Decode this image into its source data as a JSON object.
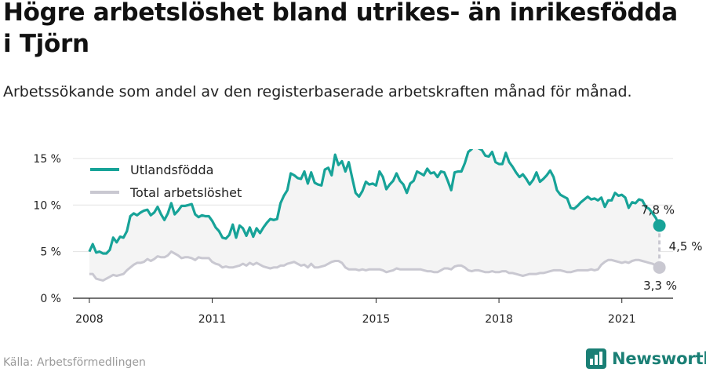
{
  "title": "Högre arbetslöshet bland utrikes- än inrikesfödda i Tjörn",
  "subtitle": "Arbetssökande som andel av den registerbaserade arbetskraften månad för månad.",
  "source": "Källa: Arbetsförmedlingen",
  "brand": {
    "name": "Newsworthy",
    "icon": "newsworthy-logo-icon"
  },
  "colors": {
    "foreign": "#17a398",
    "total": "#c9c8d1",
    "fill": "#f4f4f4",
    "grid": "#e3e3e3",
    "brand": "#1a7f75"
  },
  "chart_data": {
    "type": "line",
    "title": "Högre arbetslöshet bland utrikes- än inrikesfödda i Tjörn",
    "subtitle": "Arbetssökande som andel av den registerbaserade arbetskraften månad för månad.",
    "xlabel": "",
    "ylabel": "",
    "x_start": "2008-01",
    "x_step": "month",
    "xlim": [
      2007.6,
      2022.25
    ],
    "ylim": [
      0,
      16
    ],
    "yticks": [
      0,
      5,
      10,
      15
    ],
    "ytick_labels": [
      "0 %",
      "5 %",
      "10 %",
      "15 %"
    ],
    "xticks": [
      2008,
      2011,
      2015,
      2018,
      2021
    ],
    "xtick_labels": [
      "2008",
      "2011",
      "2015",
      "2018",
      "2021"
    ],
    "grid": true,
    "legend": "top-left",
    "series": [
      {
        "name": "Utlandsfödda",
        "values": [
          5.0,
          5.8,
          4.9,
          5.0,
          4.8,
          4.8,
          5.2,
          6.5,
          6.0,
          6.6,
          6.5,
          7.2,
          8.8,
          9.1,
          8.9,
          9.2,
          9.4,
          9.5,
          8.9,
          9.2,
          9.8,
          9.0,
          8.4,
          9.1,
          10.2,
          9.0,
          9.4,
          9.9,
          9.9,
          10.0,
          10.1,
          9.0,
          8.7,
          8.9,
          8.8,
          8.8,
          8.3,
          7.6,
          7.2,
          6.5,
          6.4,
          6.8,
          7.9,
          6.5,
          7.8,
          7.5,
          6.7,
          7.6,
          6.6,
          7.5,
          7.0,
          7.6,
          8.1,
          8.5,
          8.4,
          8.5,
          10.2,
          11.0,
          11.6,
          13.4,
          13.2,
          12.9,
          12.8,
          13.6,
          12.3,
          13.5,
          12.4,
          12.2,
          12.1,
          13.8,
          14.0,
          13.2,
          15.4,
          14.3,
          14.7,
          13.6,
          14.6,
          12.9,
          11.3,
          10.9,
          11.5,
          12.5,
          12.2,
          12.3,
          12.1,
          13.6,
          13.0,
          11.7,
          12.2,
          12.6,
          13.4,
          12.6,
          12.2,
          11.3,
          12.3,
          12.6,
          13.6,
          13.4,
          13.2,
          13.9,
          13.4,
          13.5,
          13.0,
          13.6,
          13.5,
          12.6,
          11.6,
          13.5,
          13.6,
          13.6,
          14.5,
          15.7,
          16.0,
          17.1,
          16.1,
          15.9,
          15.3,
          15.2,
          15.7,
          14.6,
          14.4,
          14.4,
          15.6,
          14.6,
          14.1,
          13.5,
          13.0,
          13.3,
          12.8,
          12.2,
          12.7,
          13.5,
          12.5,
          12.8,
          13.2,
          13.7,
          13.0,
          11.6,
          11.1,
          10.9,
          10.7,
          9.7,
          9.6,
          9.9,
          10.3,
          10.6,
          10.9,
          10.6,
          10.7,
          10.5,
          10.8,
          9.8,
          10.5,
          10.5,
          11.3,
          11.0,
          11.1,
          10.8,
          9.7,
          10.3,
          10.2,
          10.6,
          10.5,
          9.8,
          9.6,
          9.1,
          8.6,
          7.8
        ]
      },
      {
        "name": "Total arbetslöshet",
        "values": [
          2.6,
          2.6,
          2.1,
          2.0,
          1.9,
          2.1,
          2.3,
          2.5,
          2.4,
          2.5,
          2.6,
          3.0,
          3.3,
          3.6,
          3.8,
          3.8,
          3.9,
          4.2,
          4.0,
          4.2,
          4.5,
          4.4,
          4.4,
          4.6,
          5.0,
          4.8,
          4.6,
          4.3,
          4.4,
          4.4,
          4.3,
          4.1,
          4.4,
          4.3,
          4.3,
          4.3,
          3.9,
          3.7,
          3.6,
          3.3,
          3.4,
          3.3,
          3.3,
          3.4,
          3.5,
          3.7,
          3.5,
          3.8,
          3.6,
          3.8,
          3.6,
          3.4,
          3.3,
          3.2,
          3.3,
          3.3,
          3.5,
          3.5,
          3.7,
          3.8,
          3.9,
          3.7,
          3.5,
          3.6,
          3.3,
          3.7,
          3.3,
          3.3,
          3.4,
          3.5,
          3.7,
          3.9,
          4.0,
          4.0,
          3.8,
          3.3,
          3.1,
          3.1,
          3.1,
          3.0,
          3.1,
          3.0,
          3.1,
          3.1,
          3.1,
          3.1,
          3.0,
          2.8,
          2.9,
          3.0,
          3.2,
          3.1,
          3.1,
          3.1,
          3.1,
          3.1,
          3.1,
          3.1,
          3.0,
          2.9,
          2.9,
          2.8,
          2.8,
          3.0,
          3.2,
          3.2,
          3.1,
          3.4,
          3.5,
          3.5,
          3.3,
          3.0,
          2.9,
          3.0,
          3.0,
          2.9,
          2.8,
          2.8,
          2.9,
          2.8,
          2.8,
          2.9,
          2.9,
          2.7,
          2.7,
          2.6,
          2.5,
          2.4,
          2.5,
          2.6,
          2.6,
          2.6,
          2.7,
          2.7,
          2.8,
          2.9,
          3.0,
          3.0,
          3.0,
          2.9,
          2.8,
          2.8,
          2.9,
          3.0,
          3.0,
          3.0,
          3.0,
          3.1,
          3.0,
          3.1,
          3.6,
          3.9,
          4.1,
          4.1,
          4.0,
          3.9,
          3.8,
          3.9,
          3.8,
          4.0,
          4.1,
          4.1,
          4.0,
          3.9,
          3.8,
          3.7,
          3.5,
          3.3
        ]
      }
    ],
    "annotations": {
      "foreign_last": "7,8 %",
      "total_last": "3,3 %",
      "gap": "4,5 %"
    }
  }
}
